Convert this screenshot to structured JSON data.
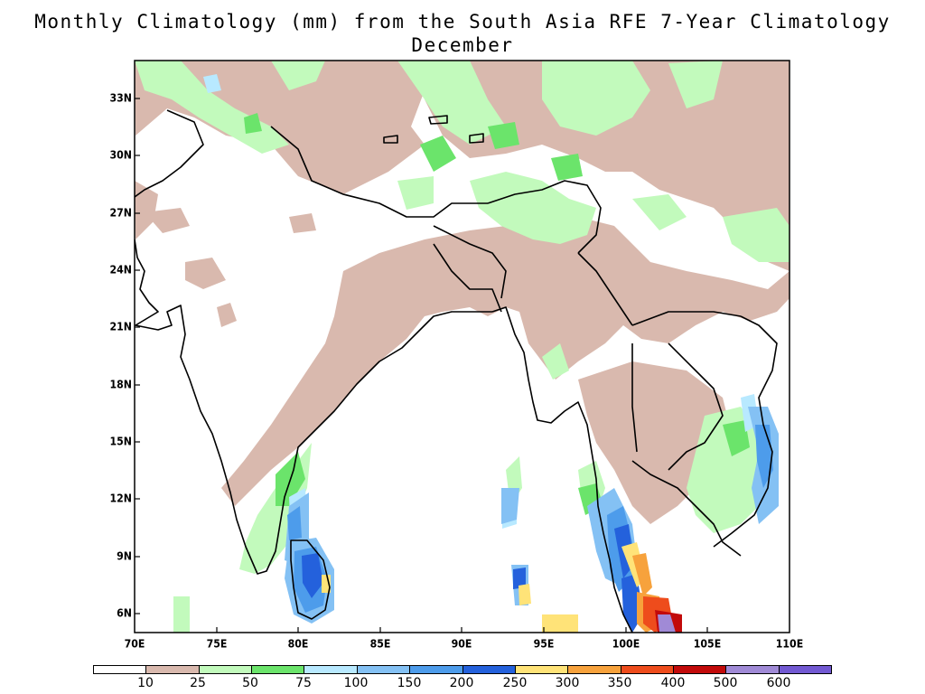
{
  "title": "Monthly Climatology (mm) from the South Asia RFE 7-Year Climatology",
  "subtitle": "December",
  "map": {
    "lon_range": [
      70,
      110
    ],
    "lat_range": [
      5,
      35
    ],
    "lon_ticks": [
      "70E",
      "75E",
      "80E",
      "85E",
      "90E",
      "95E",
      "100E",
      "105E",
      "110E"
    ],
    "lat_ticks": [
      "33N",
      "30N",
      "27N",
      "24N",
      "21N",
      "18N",
      "15N",
      "12N",
      "9N",
      "6N"
    ],
    "region": "South Asia"
  },
  "legend": {
    "labels": [
      "10",
      "25",
      "50",
      "75",
      "100",
      "150",
      "200",
      "250",
      "300",
      "350",
      "400",
      "500",
      "600"
    ],
    "colors": [
      "#ffffff",
      "#d9b9ae",
      "#c2fabc",
      "#6be46b",
      "#b8e9ff",
      "#84c1f4",
      "#4d9ceb",
      "#2461dc",
      "#ffe378",
      "#f7a23c",
      "#ee4c1c",
      "#c20a0a",
      "#a08ad6",
      "#7259d2"
    ]
  },
  "colors": {
    "c10_25": "#d9b9ae",
    "c25_50": "#c2fabc",
    "c50_75": "#6be46b",
    "c75_100": "#b8e9ff",
    "c100_150": "#84c1f4",
    "c150_200": "#4d9ceb",
    "c200_250": "#2461dc",
    "c250_300": "#ffe378",
    "c300_350": "#f7a23c",
    "c350_400": "#ee4c1c",
    "c400_500": "#c20a0a",
    "c500_600": "#a08ad6",
    "c600_plus": "#7259d2"
  }
}
